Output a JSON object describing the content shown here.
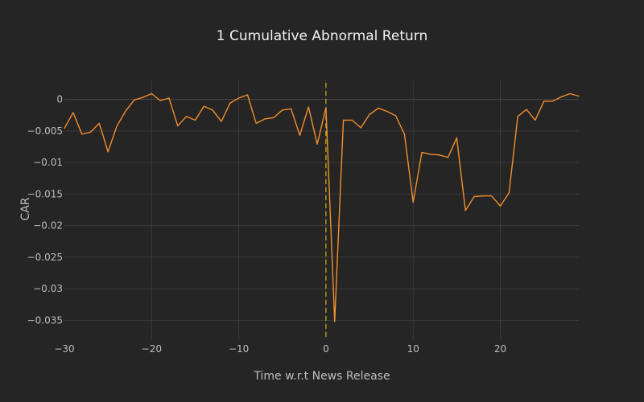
{
  "chart_data": {
    "type": "line",
    "title": "1 Cumulative Abnormal Return",
    "xlabel": "Time w.r.t News Release",
    "ylabel": "CAR",
    "xlim": [
      -30,
      29
    ],
    "ylim": [
      -0.038,
      0.003
    ],
    "xticks": [
      {
        "value": -30,
        "label": "−30"
      },
      {
        "value": -20,
        "label": "−20"
      },
      {
        "value": -10,
        "label": "−10"
      },
      {
        "value": 0,
        "label": "0"
      },
      {
        "value": 10,
        "label": "10"
      },
      {
        "value": 20,
        "label": "20"
      }
    ],
    "yticks": [
      {
        "value": 0,
        "label": "0"
      },
      {
        "value": -0.005,
        "label": "−0.005"
      },
      {
        "value": -0.01,
        "label": "−0.01"
      },
      {
        "value": -0.015,
        "label": "−0.015"
      },
      {
        "value": -0.02,
        "label": "−0.02"
      },
      {
        "value": -0.025,
        "label": "−0.025"
      },
      {
        "value": -0.03,
        "label": "−0.03"
      },
      {
        "value": -0.035,
        "label": "−0.035"
      }
    ],
    "series": [
      {
        "name": "CAR",
        "color": "#f28e2b",
        "x": [
          -30,
          -29,
          -28,
          -27,
          -26,
          -25,
          -24,
          -23,
          -22,
          -21,
          -20,
          -19,
          -18,
          -17,
          -16,
          -15,
          -14,
          -13,
          -12,
          -11,
          -10,
          -9,
          -8,
          -7,
          -6,
          -5,
          -4,
          -3,
          -2,
          -1,
          0,
          1,
          2,
          3,
          4,
          5,
          6,
          7,
          8,
          9,
          10,
          11,
          12,
          13,
          14,
          15,
          16,
          17,
          18,
          19,
          20,
          21,
          22,
          23,
          24,
          25,
          26,
          27,
          28,
          29
        ],
        "y": [
          -0.0046,
          -0.0021,
          -0.0055,
          -0.0052,
          -0.0038,
          -0.0083,
          -0.0043,
          -0.0019,
          -0.0001,
          0.0003,
          0.0009,
          -0.0002,
          0.0002,
          -0.0042,
          -0.0027,
          -0.0033,
          -0.0011,
          -0.0017,
          -0.0035,
          -0.0006,
          0.0002,
          0.0007,
          -0.0038,
          -0.0031,
          -0.0029,
          -0.0017,
          -0.0015,
          -0.0057,
          -0.0012,
          -0.0071,
          -0.0013,
          -0.0352,
          -0.0033,
          -0.0033,
          -0.0045,
          -0.0024,
          -0.0014,
          -0.0019,
          -0.0026,
          -0.0055,
          -0.0163,
          -0.0084,
          -0.0087,
          -0.0088,
          -0.0092,
          -0.0061,
          -0.0176,
          -0.0154,
          -0.0153,
          -0.0153,
          -0.0169,
          -0.0148,
          -0.0027,
          -0.0016,
          -0.0033,
          -0.0003,
          -0.0003,
          0.0004,
          0.0009,
          0.0005
        ]
      }
    ],
    "event_marker": {
      "x": 0,
      "color": "#e6d200",
      "style": "dashed"
    }
  }
}
